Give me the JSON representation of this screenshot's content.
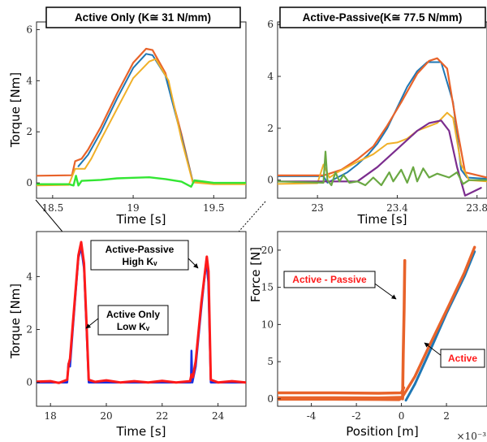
{
  "chart_data": [
    {
      "id": "tl",
      "type": "line",
      "title": "Active Only (K≅ 31 N/mm)",
      "xlabel": "Time [s]",
      "ylabel": "Torque [Nm]",
      "xlim": [
        18.4,
        19.7
      ],
      "ylim": [
        -0.6,
        6.3
      ],
      "xticks": [
        18.5,
        19,
        19.5
      ],
      "xticklabels": [
        "18.5",
        "19",
        "19.5"
      ],
      "yticks": [
        0,
        2,
        4,
        6
      ],
      "yticklabels": [
        "0",
        "2",
        "4",
        "6"
      ],
      "series": [
        {
          "color": "#e8632a",
          "width": 2.2,
          "points": [
            [
              18.4,
              0.28
            ],
            [
              18.62,
              0.3
            ],
            [
              18.64,
              0.85
            ],
            [
              18.68,
              0.95
            ],
            [
              18.72,
              1.3
            ],
            [
              18.8,
              2.2
            ],
            [
              18.9,
              3.5
            ],
            [
              19.0,
              4.7
            ],
            [
              19.08,
              5.25
            ],
            [
              19.12,
              5.2
            ],
            [
              19.2,
              4.3
            ],
            [
              19.3,
              1.9
            ],
            [
              19.37,
              0.05
            ],
            [
              19.5,
              0.0
            ],
            [
              19.7,
              0.0
            ]
          ]
        },
        {
          "color": "#1f77b4",
          "width": 2.0,
          "points": [
            [
              18.66,
              0.65
            ],
            [
              18.72,
              1.1
            ],
            [
              18.8,
              2.0
            ],
            [
              18.9,
              3.3
            ],
            [
              19.0,
              4.5
            ],
            [
              19.08,
              5.05
            ],
            [
              19.12,
              5.0
            ],
            [
              19.2,
              4.2
            ],
            [
              19.3,
              1.8
            ],
            [
              19.37,
              0.05
            ]
          ]
        },
        {
          "color": "#f0b028",
          "width": 2.0,
          "points": [
            [
              18.4,
              -0.1
            ],
            [
              18.6,
              -0.08
            ],
            [
              18.64,
              0.55
            ],
            [
              18.7,
              0.55
            ],
            [
              18.74,
              0.95
            ],
            [
              18.8,
              1.7
            ],
            [
              18.9,
              2.9
            ],
            [
              19.0,
              4.1
            ],
            [
              19.1,
              4.75
            ],
            [
              19.14,
              4.85
            ],
            [
              19.22,
              4.0
            ],
            [
              19.3,
              1.7
            ],
            [
              19.37,
              0.02
            ],
            [
              19.5,
              -0.05
            ],
            [
              19.7,
              -0.05
            ]
          ]
        },
        {
          "color": "#33e633",
          "width": 2.4,
          "points": [
            [
              18.4,
              -0.05
            ],
            [
              18.6,
              -0.05
            ],
            [
              18.63,
              -0.1
            ],
            [
              18.645,
              0.28
            ],
            [
              18.66,
              -0.1
            ],
            [
              18.68,
              0.08
            ],
            [
              18.8,
              0.12
            ],
            [
              18.9,
              0.18
            ],
            [
              19.0,
              0.2
            ],
            [
              19.1,
              0.22
            ],
            [
              19.2,
              0.15
            ],
            [
              19.3,
              0.05
            ],
            [
              19.36,
              -0.15
            ],
            [
              19.38,
              0.1
            ],
            [
              19.5,
              0.0
            ],
            [
              19.7,
              0.0
            ]
          ]
        }
      ]
    },
    {
      "id": "tr",
      "type": "line",
      "title": "Active-Passive(K≅ 77.5 N/mm)",
      "xlabel": "Time [s]",
      "ylabel": "",
      "xlim": [
        22.8,
        23.85
      ],
      "ylim": [
        -0.7,
        6.1
      ],
      "xticks": [
        23,
        23.4,
        23.8
      ],
      "xticklabels": [
        "23",
        "23.4",
        "23.8"
      ],
      "yticks": [
        0,
        2,
        4,
        6
      ],
      "yticklabels": [
        "0",
        "2",
        "4",
        "6"
      ],
      "series": [
        {
          "color": "#1f77b4",
          "width": 2.0,
          "points": [
            [
              22.8,
              0.15
            ],
            [
              23.03,
              0.15
            ],
            [
              23.05,
              -0.1
            ],
            [
              23.1,
              0.1
            ],
            [
              23.15,
              0.3
            ],
            [
              23.2,
              0.6
            ],
            [
              23.25,
              0.95
            ],
            [
              23.3,
              1.4
            ],
            [
              23.35,
              2.0
            ],
            [
              23.4,
              2.8
            ],
            [
              23.45,
              3.6
            ],
            [
              23.5,
              4.2
            ],
            [
              23.55,
              4.55
            ],
            [
              23.62,
              4.55
            ],
            [
              23.68,
              3.0
            ],
            [
              23.72,
              0.4
            ],
            [
              23.75,
              0.1
            ],
            [
              23.85,
              0.05
            ]
          ]
        },
        {
          "color": "#e8632a",
          "width": 2.2,
          "points": [
            [
              22.8,
              0.18
            ],
            [
              23.03,
              0.18
            ],
            [
              23.06,
              0.25
            ],
            [
              23.12,
              0.4
            ],
            [
              23.2,
              0.8
            ],
            [
              23.28,
              1.3
            ],
            [
              23.35,
              2.1
            ],
            [
              23.42,
              3.0
            ],
            [
              23.5,
              4.1
            ],
            [
              23.56,
              4.6
            ],
            [
              23.6,
              4.7
            ],
            [
              23.65,
              4.3
            ],
            [
              23.7,
              2.0
            ],
            [
              23.74,
              0.3
            ],
            [
              23.85,
              0.1
            ]
          ]
        },
        {
          "color": "#f0b028",
          "width": 2.0,
          "points": [
            [
              22.8,
              -0.15
            ],
            [
              23.0,
              -0.12
            ],
            [
              23.03,
              0.6
            ],
            [
              23.06,
              0.1
            ],
            [
              23.1,
              0.3
            ],
            [
              23.2,
              0.7
            ],
            [
              23.28,
              1.0
            ],
            [
              23.35,
              1.4
            ],
            [
              23.4,
              1.45
            ],
            [
              23.45,
              1.6
            ],
            [
              23.5,
              1.9
            ],
            [
              23.55,
              2.05
            ],
            [
              23.6,
              2.2
            ],
            [
              23.65,
              2.6
            ],
            [
              23.68,
              2.4
            ],
            [
              23.72,
              0.6
            ],
            [
              23.76,
              0.0
            ],
            [
              23.85,
              -0.05
            ]
          ]
        },
        {
          "color": "#7b2d8e",
          "width": 2.2,
          "points": [
            [
              22.8,
              -0.05
            ],
            [
              23.2,
              -0.05
            ],
            [
              23.3,
              0.5
            ],
            [
              23.4,
              1.2
            ],
            [
              23.5,
              1.9
            ],
            [
              23.56,
              2.2
            ],
            [
              23.62,
              2.3
            ],
            [
              23.66,
              1.9
            ],
            [
              23.7,
              0.5
            ],
            [
              23.74,
              -0.6
            ],
            [
              23.78,
              -0.45
            ],
            [
              23.82,
              -0.3
            ]
          ]
        },
        {
          "color": "#6aa843",
          "width": 2.2,
          "points": [
            [
              22.8,
              -0.05
            ],
            [
              23.03,
              -0.1
            ],
            [
              23.04,
              1.1
            ],
            [
              23.05,
              0.0
            ],
            [
              23.07,
              -0.2
            ],
            [
              23.09,
              0.3
            ],
            [
              23.11,
              -0.05
            ],
            [
              23.13,
              0.2
            ],
            [
              23.16,
              -0.1
            ],
            [
              23.2,
              -0.05
            ],
            [
              23.24,
              -0.2
            ],
            [
              23.28,
              0.1
            ],
            [
              23.32,
              -0.2
            ],
            [
              23.36,
              0.3
            ],
            [
              23.38,
              -0.05
            ],
            [
              23.42,
              0.4
            ],
            [
              23.45,
              -0.1
            ],
            [
              23.48,
              0.5
            ],
            [
              23.5,
              -0.05
            ],
            [
              23.53,
              0.45
            ],
            [
              23.56,
              0.1
            ],
            [
              23.6,
              0.25
            ],
            [
              23.66,
              0.1
            ],
            [
              23.7,
              0.3
            ],
            [
              23.73,
              -0.15
            ],
            [
              23.76,
              0.0
            ],
            [
              23.85,
              0.0
            ]
          ]
        }
      ]
    },
    {
      "id": "bl",
      "type": "line",
      "title": "",
      "xlabel": "Time [s]",
      "ylabel": "Torque [Nm]",
      "xlim": [
        17.5,
        25.0
      ],
      "ylim": [
        -0.9,
        5.7
      ],
      "xticks": [
        18,
        20,
        22,
        24
      ],
      "xticklabels": [
        "18",
        "20",
        "22",
        "24"
      ],
      "yticks": [
        0,
        2,
        4
      ],
      "yticklabels": [
        "0",
        "2",
        "4"
      ],
      "series": [
        {
          "color": "#1a2fe0",
          "width": 2.5,
          "points": [
            [
              17.5,
              0.0
            ],
            [
              18.6,
              0.0
            ],
            [
              18.64,
              0.7
            ],
            [
              18.7,
              0.6
            ],
            [
              18.8,
              2.0
            ],
            [
              19.0,
              4.7
            ],
            [
              19.1,
              5.1
            ],
            [
              19.2,
              4.3
            ],
            [
              19.37,
              0.0
            ],
            [
              22.9,
              0.0
            ],
            [
              23.03,
              0.0
            ],
            [
              23.05,
              1.2
            ],
            [
              23.08,
              0.0
            ],
            [
              23.2,
              0.6
            ],
            [
              23.4,
              2.8
            ],
            [
              23.58,
              4.6
            ],
            [
              23.65,
              3.8
            ],
            [
              23.74,
              0.0
            ],
            [
              25.0,
              0.0
            ]
          ]
        },
        {
          "color": "#ff1a1a",
          "width": 3.0,
          "points": [
            [
              17.5,
              0.03
            ],
            [
              18.0,
              0.05
            ],
            [
              18.3,
              -0.02
            ],
            [
              18.6,
              0.1
            ],
            [
              18.65,
              0.7
            ],
            [
              18.7,
              0.9
            ],
            [
              18.8,
              2.2
            ],
            [
              19.0,
              4.8
            ],
            [
              19.1,
              5.3
            ],
            [
              19.2,
              4.5
            ],
            [
              19.3,
              2.0
            ],
            [
              19.37,
              0.1
            ],
            [
              19.6,
              0.02
            ],
            [
              20.0,
              0.08
            ],
            [
              20.5,
              0.0
            ],
            [
              21.0,
              0.05
            ],
            [
              21.5,
              0.0
            ],
            [
              22.0,
              0.06
            ],
            [
              22.5,
              0.0
            ],
            [
              23.0,
              0.05
            ],
            [
              23.05,
              0.3
            ],
            [
              23.1,
              0.2
            ],
            [
              23.2,
              0.8
            ],
            [
              23.4,
              3.0
            ],
            [
              23.6,
              4.75
            ],
            [
              23.66,
              4.2
            ],
            [
              23.74,
              0.1
            ],
            [
              24.0,
              0.0
            ],
            [
              24.5,
              0.05
            ],
            [
              25.0,
              0.0
            ]
          ]
        }
      ],
      "annotations": [
        {
          "lines": [
            "Active-Passive",
            "High Kᵥ"
          ]
        },
        {
          "lines": [
            "Active Only",
            "Low Kᵥ"
          ]
        }
      ]
    },
    {
      "id": "br",
      "type": "scatter",
      "title": "",
      "xlabel": "Position [m]",
      "ylabel": "Force [N]",
      "x_multiplier": "×10⁻³",
      "xlim": [
        -5.5,
        3.8
      ],
      "ylim": [
        -1.0,
        22.5
      ],
      "xticks": [
        -4,
        -2,
        0,
        2
      ],
      "xticklabels": [
        "-4",
        "-2",
        "0",
        "2"
      ],
      "yticks": [
        0,
        5,
        10,
        15,
        20
      ],
      "yticklabels": [
        "0",
        "5",
        "10",
        "15",
        "20"
      ],
      "series": [
        {
          "color": "#1f77b4",
          "width": 3.0,
          "points": [
            [
              0.2,
              -0.2
            ],
            [
              0.6,
              2.0
            ],
            [
              1.2,
              6.0
            ],
            [
              2.0,
              11.5
            ],
            [
              2.8,
              16.5
            ],
            [
              3.25,
              19.8
            ]
          ]
        },
        {
          "color": "#e8632a",
          "width": 3.4,
          "points": [
            [
              0.05,
              0.3
            ],
            [
              0.6,
              3.0
            ],
            [
              1.3,
              7.5
            ],
            [
              2.1,
              12.5
            ],
            [
              2.8,
              17.0
            ],
            [
              3.25,
              20.4
            ]
          ]
        },
        {
          "color": "#e8632a",
          "width": 3.6,
          "points": [
            [
              -5.5,
              0.8
            ],
            [
              -3.0,
              0.8
            ],
            [
              -1.0,
              0.75
            ],
            [
              0.0,
              0.8
            ],
            [
              0.1,
              1.5
            ]
          ]
        },
        {
          "color": "#e8632a",
          "width": 3.6,
          "points": [
            [
              -5.5,
              0.15
            ],
            [
              -3.0,
              0.15
            ],
            [
              -1.0,
              0.12
            ],
            [
              0.0,
              0.2
            ]
          ]
        },
        {
          "color": "#e8632a",
          "width": 3.6,
          "points": [
            [
              -5.5,
              -0.05
            ],
            [
              -3.0,
              -0.05
            ],
            [
              -1.0,
              -0.08
            ],
            [
              -0.1,
              -0.1
            ],
            [
              0.05,
              0.2
            ]
          ]
        },
        {
          "color": "#e8632a",
          "width": 3.6,
          "points": [
            [
              0.05,
              0.0
            ],
            [
              0.08,
              6.0
            ],
            [
              0.12,
              12.0
            ],
            [
              0.15,
              18.6
            ]
          ]
        }
      ],
      "annotations": [
        {
          "text": "Active - Passive"
        },
        {
          "text": "Active"
        }
      ]
    }
  ]
}
